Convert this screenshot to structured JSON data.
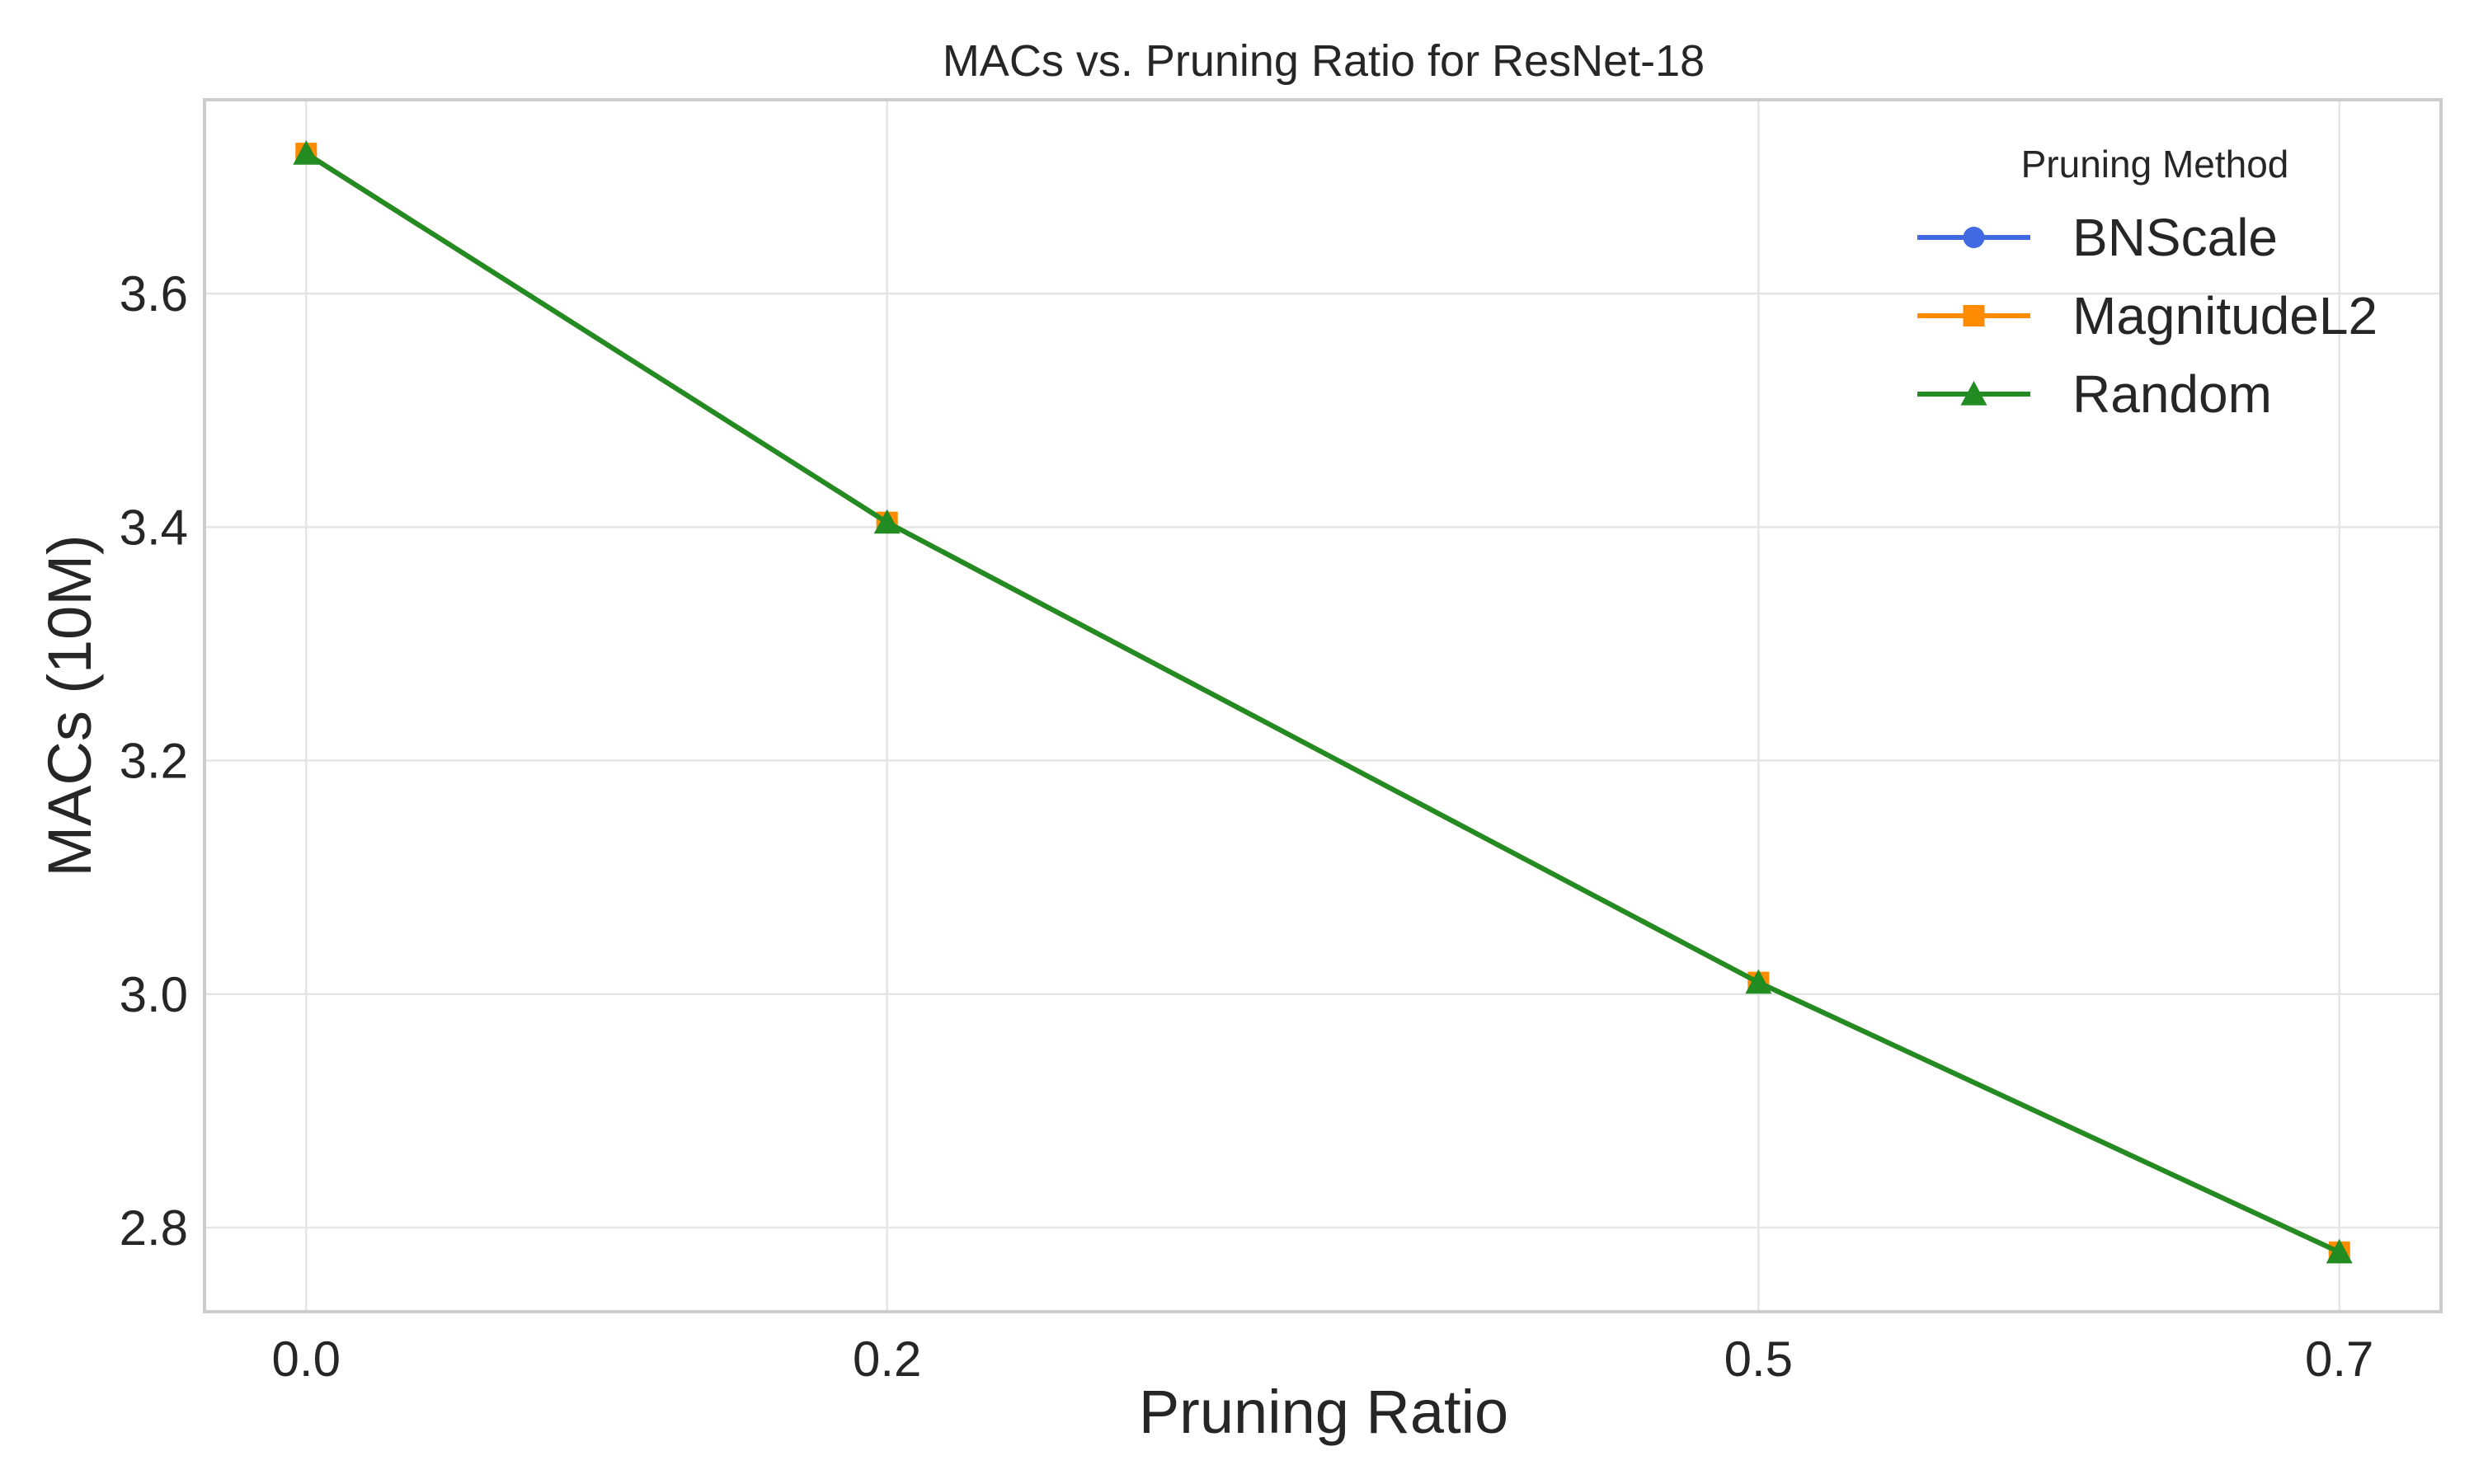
{
  "chart_data": {
    "type": "line",
    "title": "MACs vs. Pruning Ratio for ResNet-18",
    "xlabel": "Pruning Ratio",
    "ylabel": "MACs (10M)",
    "x": [
      0.0,
      0.2,
      0.5,
      0.7
    ],
    "x_tick_labels": [
      "0.0",
      "0.2",
      "0.5",
      "0.7"
    ],
    "y_ticks": [
      2.8,
      3.0,
      3.2,
      3.4,
      3.6
    ],
    "y_tick_labels": [
      "2.8",
      "3.0",
      "3.2",
      "3.4",
      "3.6"
    ],
    "xlim": [
      -0.035,
      0.735
    ],
    "ylim": [
      2.728,
      3.766
    ],
    "grid": true,
    "legend_title": "Pruning Method",
    "legend_position": "top-right",
    "series": [
      {
        "name": "BNScale",
        "color": "#4169e1",
        "marker": "circle",
        "values": [
          3.72,
          3.404,
          3.01,
          2.779
        ]
      },
      {
        "name": "MagnitudeL2",
        "color": "#ff8c00",
        "marker": "square",
        "values": [
          3.72,
          3.404,
          3.01,
          2.779
        ]
      },
      {
        "name": "Random",
        "color": "#228b22",
        "marker": "triangle",
        "values": [
          3.72,
          3.404,
          3.01,
          2.779
        ]
      }
    ]
  }
}
